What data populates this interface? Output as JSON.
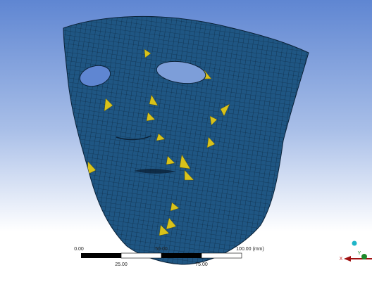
{
  "scale_bar": {
    "top_labels": [
      "0.00",
      "50.00",
      "100.00 (mm)"
    ],
    "bottom_labels": [
      "25.00",
      "75.00"
    ]
  },
  "triad": {
    "x_label": "X",
    "y_label": "Y"
  }
}
